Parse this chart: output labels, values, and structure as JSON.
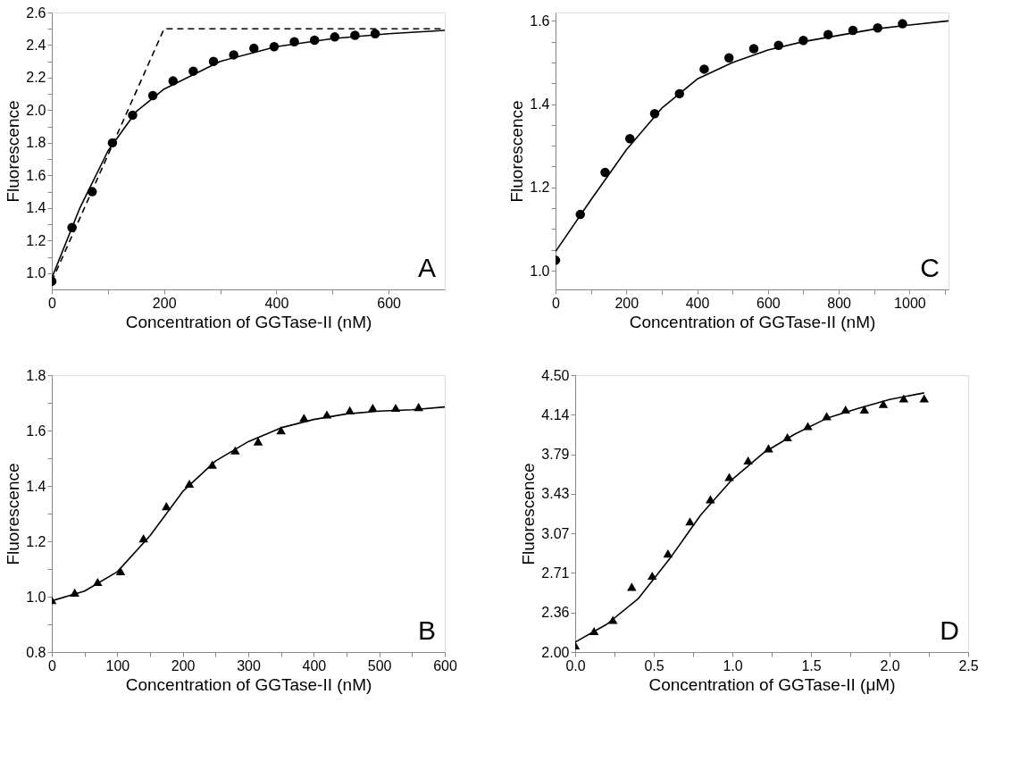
{
  "chart_data": [
    {
      "type": "scatter",
      "xlabel": "Concentration of GGTase-II (nM)",
      "ylabel": "Fluorescence",
      "annotations": [
        "A"
      ],
      "xlim": [
        0,
        700
      ],
      "ylim": [
        0.9,
        2.6
      ],
      "xticks": [
        0,
        {
          "value": 100,
          "label": null
        },
        200,
        {
          "value": 300,
          "label": null
        },
        400,
        {
          "value": 500,
          "label": null
        },
        600
      ],
      "yticks": [
        {
          "value": 1.0,
          "label": "1.0"
        },
        {
          "value": 1.1,
          "label": null
        },
        1.2,
        {
          "value": 1.3,
          "label": null
        },
        1.4,
        {
          "value": 1.5,
          "label": null
        },
        1.6,
        {
          "value": 1.7,
          "label": null
        },
        1.8,
        {
          "value": 1.9,
          "label": null
        },
        {
          "value": 2.0,
          "label": "2.0"
        },
        {
          "value": 2.1,
          "label": null
        },
        2.2,
        {
          "value": 2.3,
          "label": null
        },
        2.4,
        {
          "value": 2.5,
          "label": null
        },
        2.6
      ],
      "series": [
        {
          "marker": "circle",
          "color": "#000000",
          "x": [
            0,
            36,
            72,
            108,
            144,
            180,
            216,
            252,
            288,
            324,
            360,
            396,
            432,
            468,
            504,
            540,
            576
          ],
          "values": [
            0.95,
            1.28,
            1.5,
            1.8,
            1.97,
            2.09,
            2.18,
            2.24,
            2.3,
            2.34,
            2.38,
            2.39,
            2.42,
            2.43,
            2.45,
            2.46,
            2.47
          ]
        },
        {
          "type": "line",
          "line_style": "solid",
          "color": "#000000",
          "x": [
            0,
            50,
            100,
            150,
            200,
            300,
            400,
            500,
            600,
            700
          ],
          "values": [
            0.97,
            1.4,
            1.75,
            1.99,
            2.13,
            2.3,
            2.39,
            2.44,
            2.47,
            2.49
          ]
        },
        {
          "type": "line",
          "line_style": "dashed",
          "color": "#000000",
          "x": [
            0,
            200,
            700
          ],
          "values": [
            0.95,
            2.5,
            2.5
          ]
        }
      ]
    },
    {
      "type": "scatter",
      "xlabel": "Concentration of GGTase-II (nM)",
      "ylabel": "Fluorescence",
      "annotations": [
        "C"
      ],
      "xlim": [
        0,
        1110
      ],
      "ylim": [
        0.955,
        1.62
      ],
      "xticks": [
        0,
        {
          "value": 100,
          "label": null
        },
        200,
        {
          "value": 300,
          "label": null
        },
        400,
        {
          "value": 500,
          "label": null
        },
        600,
        {
          "value": 700,
          "label": null
        },
        800,
        {
          "value": 900,
          "label": null
        },
        1000,
        {
          "value": 1100,
          "label": null
        }
      ],
      "yticks": [
        {
          "value": 1.0,
          "label": "1.0"
        },
        {
          "value": 1.05,
          "label": null
        },
        {
          "value": 1.1,
          "label": null
        },
        {
          "value": 1.15,
          "label": null
        },
        1.2,
        {
          "value": 1.25,
          "label": null
        },
        {
          "value": 1.3,
          "label": null
        },
        {
          "value": 1.35,
          "label": null
        },
        1.4,
        {
          "value": 1.45,
          "label": null
        },
        {
          "value": 1.5,
          "label": null
        },
        {
          "value": 1.55,
          "label": null
        },
        1.6
      ],
      "series": [
        {
          "marker": "circle",
          "color": "#000000",
          "x": [
            0,
            70,
            140,
            210,
            280,
            350,
            420,
            490,
            560,
            630,
            700,
            770,
            840,
            910,
            980
          ],
          "values": [
            1.025,
            1.135,
            1.236,
            1.317,
            1.377,
            1.425,
            1.484,
            1.511,
            1.533,
            1.541,
            1.553,
            1.567,
            1.577,
            1.583,
            1.593
          ]
        },
        {
          "type": "line",
          "line_style": "solid",
          "color": "#000000",
          "x": [
            0,
            100,
            200,
            300,
            400,
            500,
            600,
            700,
            800,
            900,
            1000,
            1110
          ],
          "values": [
            1.046,
            1.17,
            1.29,
            1.39,
            1.46,
            1.5,
            1.53,
            1.55,
            1.565,
            1.58,
            1.59,
            1.6
          ]
        }
      ]
    },
    {
      "type": "scatter",
      "xlabel": "Concentration of GGTase-II (nM)",
      "ylabel": "Fluorescence",
      "annotations": [
        "B"
      ],
      "xlim": [
        0,
        600
      ],
      "ylim": [
        0.8,
        1.8
      ],
      "xticks": [
        0,
        {
          "value": 50,
          "label": null
        },
        100,
        {
          "value": 150,
          "label": null
        },
        200,
        {
          "value": 250,
          "label": null
        },
        300,
        {
          "value": 350,
          "label": null
        },
        400,
        {
          "value": 450,
          "label": null
        },
        500,
        {
          "value": 550,
          "label": null
        },
        600
      ],
      "yticks": [
        0.8,
        {
          "value": 0.9,
          "label": null
        },
        {
          "value": 1.0,
          "label": "1.0"
        },
        {
          "value": 1.1,
          "label": null
        },
        1.2,
        {
          "value": 1.3,
          "label": null
        },
        1.4,
        {
          "value": 1.5,
          "label": null
        },
        1.6,
        {
          "value": 1.7,
          "label": null
        },
        1.8
      ],
      "series": [
        {
          "marker": "triangle",
          "color": "#000000",
          "x": [
            0,
            35,
            70,
            105,
            140,
            175,
            210,
            245,
            280,
            315,
            350,
            385,
            420,
            455,
            490,
            525,
            560
          ],
          "values": [
            0.988,
            1.015,
            1.053,
            1.092,
            1.211,
            1.327,
            1.408,
            1.477,
            1.528,
            1.561,
            1.601,
            1.646,
            1.658,
            1.673,
            1.682,
            1.682,
            1.685
          ]
        },
        {
          "type": "line",
          "line_style": "solid",
          "color": "#000000",
          "x": [
            0,
            50,
            100,
            150,
            200,
            250,
            300,
            350,
            400,
            450,
            500,
            550,
            600
          ],
          "values": [
            0.985,
            1.02,
            1.09,
            1.22,
            1.38,
            1.49,
            1.56,
            1.61,
            1.64,
            1.66,
            1.67,
            1.675,
            1.685
          ]
        }
      ]
    },
    {
      "type": "scatter",
      "xlabel": "Concentration of GGTase-II (μM)",
      "ylabel": "Fluorescence",
      "annotations": [
        "D"
      ],
      "xlim": [
        0,
        2.5
      ],
      "ylim": [
        2.0,
        4.5
      ],
      "xticks": [
        {
          "value": 0,
          "label": "0.0"
        },
        {
          "value": 0.25,
          "label": null
        },
        0.5,
        {
          "value": 0.75,
          "label": null
        },
        {
          "value": 1,
          "label": "1.0"
        },
        {
          "value": 1.25,
          "label": null
        },
        1.5,
        {
          "value": 1.75,
          "label": null
        },
        {
          "value": 2,
          "label": "2.0"
        },
        {
          "value": 2.25,
          "label": null
        },
        2.5
      ],
      "yticks": [
        {
          "value": 2.0,
          "label": "2.00"
        },
        {
          "value": 2.357,
          "label": "2.36"
        },
        {
          "value": 2.714,
          "label": "2.71"
        },
        {
          "value": 3.071,
          "label": "3.07"
        },
        {
          "value": 3.429,
          "label": "3.43"
        },
        {
          "value": 3.786,
          "label": "3.79"
        },
        {
          "value": 4.143,
          "label": "4.14"
        },
        {
          "value": 4.5,
          "label": "4.50"
        }
      ],
      "series": [
        {
          "marker": "triangle",
          "color": "#000000",
          "x": [
            0.0,
            0.12,
            0.24,
            0.36,
            0.49,
            0.59,
            0.73,
            0.86,
            0.98,
            1.1,
            1.23,
            1.35,
            1.48,
            1.6,
            1.72,
            1.84,
            1.96,
            2.09,
            2.22
          ],
          "values": [
            2.06,
            2.19,
            2.29,
            2.59,
            2.69,
            2.89,
            3.18,
            3.38,
            3.58,
            3.73,
            3.84,
            3.94,
            4.04,
            4.13,
            4.19,
            4.19,
            4.24,
            4.29,
            4.29
          ]
        },
        {
          "type": "line",
          "line_style": "solid",
          "color": "#000000",
          "x": [
            0,
            0.2,
            0.4,
            0.6,
            0.8,
            1.0,
            1.2,
            1.4,
            1.6,
            1.8,
            2.0,
            2.22
          ],
          "values": [
            2.09,
            2.25,
            2.48,
            2.84,
            3.24,
            3.56,
            3.8,
            3.97,
            4.11,
            4.2,
            4.28,
            4.34
          ]
        }
      ]
    }
  ]
}
